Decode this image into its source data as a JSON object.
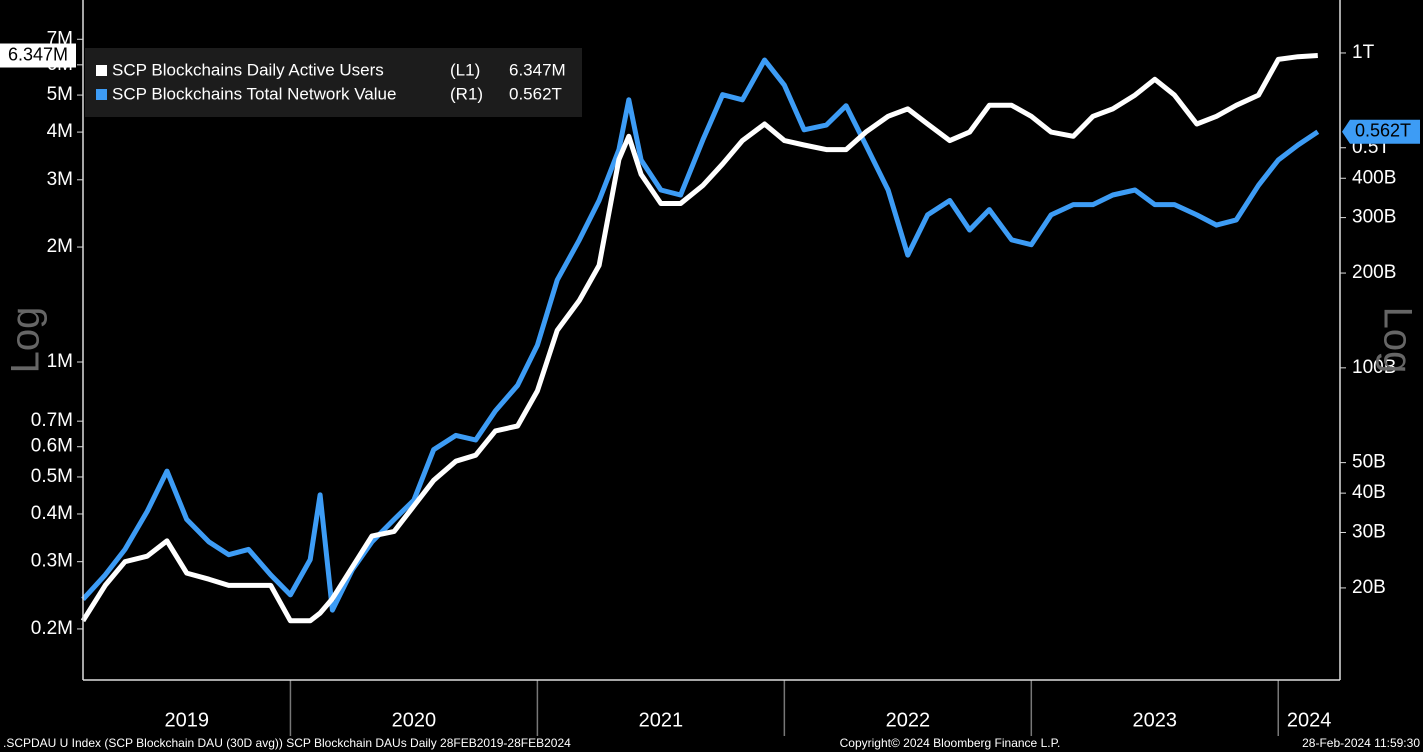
{
  "chart_data": {
    "type": "line",
    "y_axis_title": "Log",
    "y2_axis_title": "Log",
    "log_scale": true,
    "x": [
      2019.16,
      2019.25,
      2019.33,
      2019.42,
      2019.5,
      2019.58,
      2019.67,
      2019.75,
      2019.83,
      2019.92,
      2020.0,
      2020.08,
      2020.12,
      2020.17,
      2020.25,
      2020.33,
      2020.42,
      2020.5,
      2020.58,
      2020.67,
      2020.75,
      2020.83,
      2020.92,
      2021.0,
      2021.08,
      2021.17,
      2021.25,
      2021.33,
      2021.37,
      2021.42,
      2021.5,
      2021.58,
      2021.67,
      2021.75,
      2021.83,
      2021.92,
      2022.0,
      2022.08,
      2022.17,
      2022.25,
      2022.33,
      2022.42,
      2022.5,
      2022.58,
      2022.67,
      2022.75,
      2022.83,
      2022.92,
      2023.0,
      2023.08,
      2023.17,
      2023.25,
      2023.33,
      2023.42,
      2023.5,
      2023.58,
      2023.67,
      2023.75,
      2023.83,
      2023.92,
      2024.0,
      2024.08,
      2024.16
    ],
    "xlim": [
      2019.16,
      2024.25
    ],
    "xticks": [
      2020,
      2021,
      2022,
      2023,
      2024
    ],
    "year_labels": [
      "2019",
      "2020",
      "2021",
      "2022",
      "2023",
      "2024"
    ],
    "ylim": [
      0.147,
      8.87
    ],
    "yticks": [
      {
        "value": 0.2,
        "label": "0.2M"
      },
      {
        "value": 0.3,
        "label": "0.3M"
      },
      {
        "value": 0.4,
        "label": "0.4M"
      },
      {
        "value": 0.5,
        "label": "0.5M"
      },
      {
        "value": 0.6,
        "label": "0.6M"
      },
      {
        "value": 0.7,
        "label": "0.7M"
      },
      {
        "value": 1,
        "label": "1M"
      },
      {
        "value": 2,
        "label": "2M"
      },
      {
        "value": 3,
        "label": "3M"
      },
      {
        "value": 4,
        "label": "4M"
      },
      {
        "value": 5,
        "label": "5M"
      },
      {
        "value": 6,
        "label": "6M"
      },
      {
        "value": 7,
        "label": "7M"
      }
    ],
    "y2lim": [
      10.2,
      1473
    ],
    "y2ticks": [
      {
        "value": 20,
        "label": "20B"
      },
      {
        "value": 30,
        "label": "30B"
      },
      {
        "value": 40,
        "label": "40B"
      },
      {
        "value": 50,
        "label": "50B"
      },
      {
        "value": 100,
        "label": "100B"
      },
      {
        "value": 200,
        "label": "200B"
      },
      {
        "value": 300,
        "label": "300B"
      },
      {
        "value": 400,
        "label": "400B"
      },
      {
        "value": 500,
        "label": "0.5T"
      },
      {
        "value": 1000,
        "label": "1T"
      }
    ],
    "series": [
      {
        "name": "SCP Blockchains Daily Active Users",
        "axis_tag": "(L1)",
        "color": "#ffffff",
        "last_value": 6.347,
        "last_label": "6.347M",
        "values": [
          0.21,
          0.26,
          0.3,
          0.31,
          0.34,
          0.28,
          0.27,
          0.26,
          0.26,
          0.26,
          0.21,
          0.21,
          0.22,
          0.24,
          0.29,
          0.35,
          0.36,
          0.42,
          0.49,
          0.55,
          0.57,
          0.66,
          0.68,
          0.84,
          1.21,
          1.45,
          1.79,
          3.39,
          3.9,
          3.1,
          2.6,
          2.6,
          2.9,
          3.3,
          3.8,
          4.2,
          3.8,
          3.7,
          3.6,
          3.6,
          4.0,
          4.4,
          4.6,
          4.2,
          3.8,
          4.0,
          4.7,
          4.7,
          4.4,
          4.0,
          3.9,
          4.4,
          4.6,
          5.0,
          5.5,
          5.0,
          4.2,
          4.4,
          4.7,
          5.0,
          6.2,
          6.3,
          6.347
        ]
      },
      {
        "name": "SCP Blockchains Total Network Value",
        "axis_tag": "(R1)",
        "axis": "y2",
        "color": "#3d9cf5",
        "last_value": 562,
        "last_label": "0.562T",
        "values": [
          18.4,
          22,
          26.5,
          35,
          47,
          33,
          28,
          25.5,
          26.5,
          22,
          19,
          24.6,
          39.5,
          17,
          22.8,
          28,
          33,
          38,
          55,
          61,
          59,
          73,
          88,
          118,
          190,
          255,
          340,
          493,
          710,
          457,
          367,
          354,
          530,
          737,
          710,
          950,
          790,
          570,
          590,
          680,
          510,
          367,
          228,
          306,
          340,
          274,
          318,
          255,
          246,
          306,
          330,
          330,
          354,
          367,
          330,
          330,
          306,
          284,
          295,
          380,
          457,
          510,
          562
        ]
      }
    ],
    "footer_left": ".SCPDAU U Index (SCP Blockchain DAU (30D avg)) SCP Blockchain DAUs  Daily 28FEB2019-28FEB2024",
    "footer_center": "Copyright© 2024 Bloomberg Finance L.P.",
    "footer_right": "28-Feb-2024 11:59:30"
  }
}
